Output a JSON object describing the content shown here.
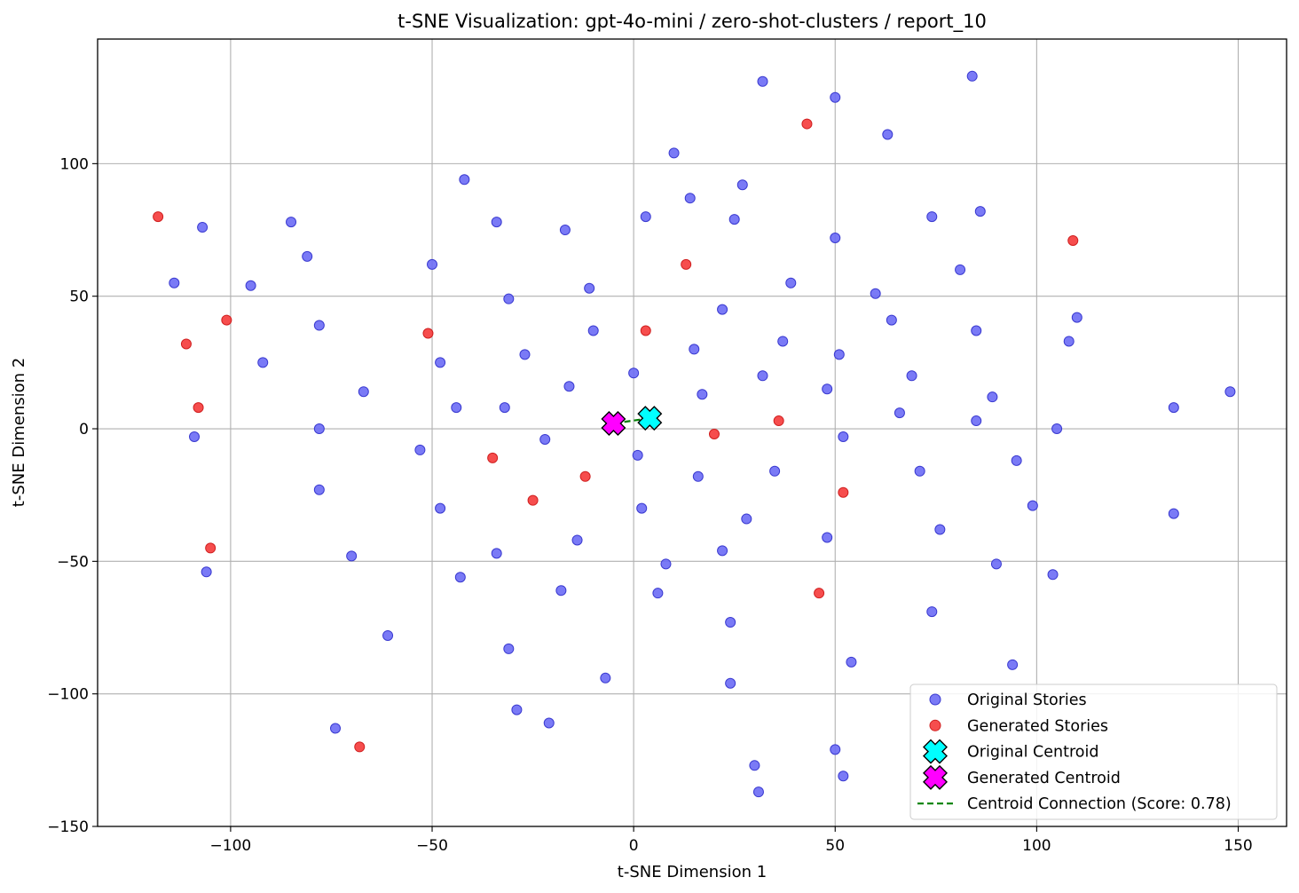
{
  "chart_data": {
    "type": "scatter",
    "title": "t-SNE Visualization: gpt-4o-mini / zero-shot-clusters / report_10",
    "xlabel": "t-SNE Dimension 1",
    "ylabel": "t-SNE Dimension 2",
    "xlim": [
      -133,
      162
    ],
    "ylim": [
      -150,
      147
    ],
    "xticks": [
      -100,
      -50,
      0,
      50,
      100,
      150
    ],
    "xtick_labels": [
      "−100",
      "−50",
      "0",
      "50",
      "100",
      "150"
    ],
    "yticks": [
      -150,
      -100,
      -50,
      0,
      50,
      100
    ],
    "ytick_labels": [
      "−150",
      "−100",
      "−50",
      "0",
      "50",
      "100"
    ],
    "grid": true,
    "legend_position": "bottom-right",
    "series": [
      {
        "name": "Original Stories",
        "marker": "circle",
        "color": "#6b6bf5",
        "edge_color": "#3a3ad0",
        "points": [
          [
            32,
            131
          ],
          [
            84,
            133
          ],
          [
            50,
            125
          ],
          [
            63,
            111
          ],
          [
            10,
            104
          ],
          [
            27,
            92
          ],
          [
            -42,
            94
          ],
          [
            14,
            87
          ],
          [
            86,
            82
          ],
          [
            3,
            80
          ],
          [
            25,
            79
          ],
          [
            74,
            80
          ],
          [
            -34,
            78
          ],
          [
            -85,
            78
          ],
          [
            -107,
            76
          ],
          [
            -17,
            75
          ],
          [
            50,
            72
          ],
          [
            -81,
            65
          ],
          [
            -50,
            62
          ],
          [
            81,
            60
          ],
          [
            -114,
            55
          ],
          [
            -95,
            54
          ],
          [
            39,
            55
          ],
          [
            -11,
            53
          ],
          [
            60,
            51
          ],
          [
            -31,
            49
          ],
          [
            22,
            45
          ],
          [
            64,
            41
          ],
          [
            110,
            42
          ],
          [
            -78,
            39
          ],
          [
            -10,
            37
          ],
          [
            85,
            37
          ],
          [
            37,
            33
          ],
          [
            108,
            33
          ],
          [
            -27,
            28
          ],
          [
            15,
            30
          ],
          [
            51,
            28
          ],
          [
            -92,
            25
          ],
          [
            -48,
            25
          ],
          [
            0,
            21
          ],
          [
            32,
            20
          ],
          [
            69,
            20
          ],
          [
            -16,
            16
          ],
          [
            48,
            15
          ],
          [
            -67,
            14
          ],
          [
            17,
            13
          ],
          [
            89,
            12
          ],
          [
            148,
            14
          ],
          [
            -44,
            8
          ],
          [
            -32,
            8
          ],
          [
            66,
            6
          ],
          [
            134,
            8
          ],
          [
            85,
            3
          ],
          [
            -78,
            0
          ],
          [
            105,
            0
          ],
          [
            -109,
            -3
          ],
          [
            52,
            -3
          ],
          [
            -22,
            -4
          ],
          [
            -53,
            -8
          ],
          [
            1,
            -10
          ],
          [
            95,
            -12
          ],
          [
            35,
            -16
          ],
          [
            71,
            -16
          ],
          [
            16,
            -18
          ],
          [
            -78,
            -23
          ],
          [
            -48,
            -30
          ],
          [
            2,
            -30
          ],
          [
            99,
            -29
          ],
          [
            28,
            -34
          ],
          [
            134,
            -32
          ],
          [
            76,
            -38
          ],
          [
            -14,
            -42
          ],
          [
            48,
            -41
          ],
          [
            22,
            -46
          ],
          [
            -34,
            -47
          ],
          [
            -70,
            -48
          ],
          [
            8,
            -51
          ],
          [
            90,
            -51
          ],
          [
            -106,
            -54
          ],
          [
            -43,
            -56
          ],
          [
            104,
            -55
          ],
          [
            -18,
            -61
          ],
          [
            6,
            -62
          ],
          [
            74,
            -69
          ],
          [
            24,
            -73
          ],
          [
            -61,
            -78
          ],
          [
            -31,
            -83
          ],
          [
            54,
            -88
          ],
          [
            94,
            -89
          ],
          [
            -7,
            -94
          ],
          [
            24,
            -96
          ],
          [
            -29,
            -106
          ],
          [
            -21,
            -111
          ],
          [
            -74,
            -113
          ],
          [
            50,
            -121
          ],
          [
            30,
            -127
          ],
          [
            52,
            -131
          ],
          [
            31,
            -137
          ]
        ]
      },
      {
        "name": "Generated Stories",
        "marker": "circle",
        "color": "#f53a3a",
        "edge_color": "#d02020",
        "points": [
          [
            -118,
            80
          ],
          [
            43,
            115
          ],
          [
            109,
            71
          ],
          [
            13,
            62
          ],
          [
            -101,
            41
          ],
          [
            -111,
            32
          ],
          [
            -51,
            36
          ],
          [
            3,
            37
          ],
          [
            -108,
            8
          ],
          [
            36,
            3
          ],
          [
            20,
            -2
          ],
          [
            -35,
            -11
          ],
          [
            -12,
            -18
          ],
          [
            -25,
            -27
          ],
          [
            52,
            -24
          ],
          [
            -105,
            -45
          ],
          [
            46,
            -62
          ],
          [
            -68,
            -120
          ]
        ]
      },
      {
        "name": "Original Centroid",
        "marker": "X",
        "color": "#00ffff",
        "edge_color": "#000000",
        "points": [
          [
            4,
            4
          ]
        ]
      },
      {
        "name": "Generated Centroid",
        "marker": "X",
        "color": "#ff00ff",
        "edge_color": "#000000",
        "points": [
          [
            -5,
            2
          ]
        ]
      },
      {
        "name": "Centroid Connection (Score: 0.78)",
        "marker": "dashed-line",
        "color": "#008000",
        "points": [
          [
            4,
            4
          ],
          [
            -5,
            2
          ]
        ]
      }
    ]
  }
}
